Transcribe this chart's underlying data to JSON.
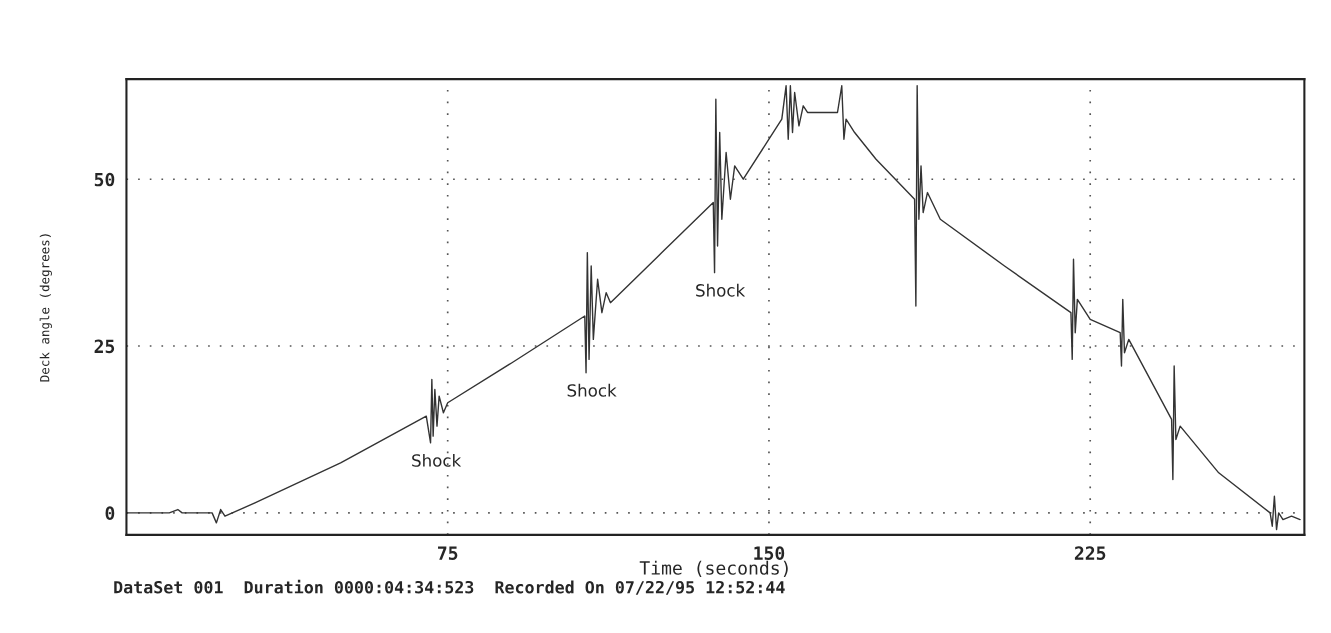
{
  "chart_data": {
    "type": "line",
    "xlabel": "Time (seconds)",
    "ylabel": "Deck angle (degrees)",
    "x": [
      0,
      10,
      12,
      13,
      20,
      21,
      22,
      23,
      30,
      50,
      70,
      71,
      71.3,
      71.6,
      72,
      72.5,
      73,
      74,
      75,
      90,
      107,
      107.3,
      107.6,
      108,
      108.5,
      109,
      110,
      111,
      112,
      113,
      125,
      137,
      137.3,
      137.6,
      138,
      138.5,
      139,
      140,
      141,
      142,
      144,
      150,
      153,
      154,
      154.5,
      155,
      155.5,
      156,
      157,
      158,
      159,
      166,
      167,
      167.5,
      168,
      170,
      175,
      184,
      184.3,
      184.6,
      185,
      185.5,
      186,
      187,
      190,
      205,
      220.5,
      220.8,
      221.1,
      221.5,
      222,
      225,
      232,
      232.3,
      232.6,
      233,
      234,
      244,
      244.3,
      244.6,
      245,
      246,
      255,
      267,
      267.5,
      268,
      268.5,
      269,
      270,
      272,
      274
    ],
    "series": [
      {
        "color": "#333333",
        "values": [
          0,
          0,
          0.5,
          0,
          0,
          -1.5,
          0.5,
          -0.5,
          1.5,
          7.5,
          14.5,
          10.5,
          20,
          11.5,
          18.5,
          13,
          17.5,
          15,
          16.5,
          22.5,
          29.5,
          21,
          39,
          23,
          37,
          26,
          35,
          30,
          33,
          31.5,
          39,
          46.5,
          36,
          62,
          40,
          57,
          44,
          54,
          47,
          52,
          50,
          56,
          59,
          64,
          56,
          64,
          57,
          63,
          58,
          61,
          60,
          60,
          64,
          56,
          59,
          57,
          53,
          47,
          31,
          64,
          44,
          52,
          45,
          48,
          44,
          37,
          30,
          23,
          38,
          27,
          32,
          29,
          27,
          22,
          32,
          24,
          26,
          14,
          5,
          22,
          11,
          13,
          6,
          0,
          -2,
          2.5,
          -2.5,
          0,
          -1,
          -0.5,
          -1
        ]
      }
    ],
    "xlim": [
      0,
      275
    ],
    "ylim": [
      -3.3,
      65
    ],
    "xticks": [
      75,
      150,
      225
    ],
    "yticks": [
      0,
      25,
      50
    ],
    "grid": true,
    "line_style": "solid",
    "annotations": [
      {
        "text": "Shock",
        "x": 71,
        "y": 10.5
      },
      {
        "text": "Shock",
        "x": 107.3,
        "y": 21
      },
      {
        "text": "Shock",
        "x": 137.3,
        "y": 36
      },
      "DataSet 001  Duration 0000:04:34:523  Recorded On 07/22/95 12:52:44"
    ]
  }
}
